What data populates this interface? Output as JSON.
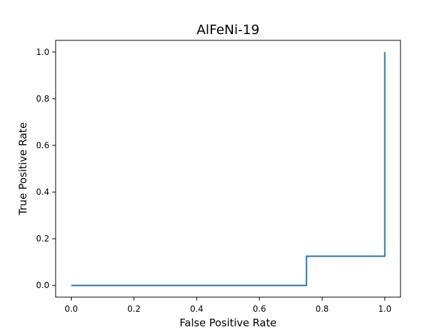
{
  "chart_data": {
    "type": "line",
    "title": "AlFeNi-19",
    "xlabel": "False Positive Rate",
    "ylabel": "True Positive Rate",
    "xlim": [
      -0.05,
      1.05
    ],
    "ylim": [
      -0.05,
      1.05
    ],
    "xticks": [
      0.0,
      0.2,
      0.4,
      0.6,
      0.8,
      1.0
    ],
    "yticks": [
      0.0,
      0.2,
      0.4,
      0.6,
      0.8,
      1.0
    ],
    "xtick_labels": [
      "0.0",
      "0.2",
      "0.4",
      "0.6",
      "0.8",
      "1.0"
    ],
    "ytick_labels": [
      "0.0",
      "0.2",
      "0.4",
      "0.6",
      "0.8",
      "1.0"
    ],
    "grid": false,
    "series": [
      {
        "color": "#1f77b4",
        "x": [
          0.0,
          0.75,
          0.75,
          1.0,
          1.0
        ],
        "y": [
          0.0,
          0.0,
          0.125,
          0.125,
          1.0
        ]
      }
    ]
  }
}
